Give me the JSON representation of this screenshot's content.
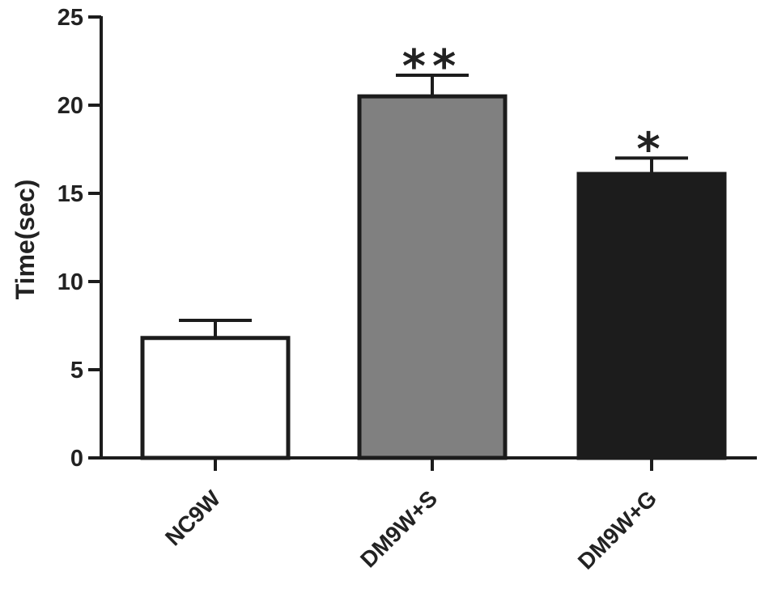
{
  "chart_data": {
    "type": "bar",
    "title": "",
    "xlabel": "",
    "ylabel": "Time(sec)",
    "ylim": [
      0,
      25
    ],
    "yticks": [
      0,
      5,
      10,
      15,
      20,
      25
    ],
    "grid": false,
    "categories": [
      "NC9W",
      "DM9W+S",
      "DM9W+G"
    ],
    "values": [
      6.8,
      20.5,
      16.1
    ],
    "error": [
      1.0,
      1.2,
      0.9
    ],
    "significance": [
      "",
      "**",
      "*"
    ],
    "colors": [
      "#ffffff",
      "#808080",
      "#1c1c1c"
    ],
    "edge_color": "#1c1c1c"
  }
}
